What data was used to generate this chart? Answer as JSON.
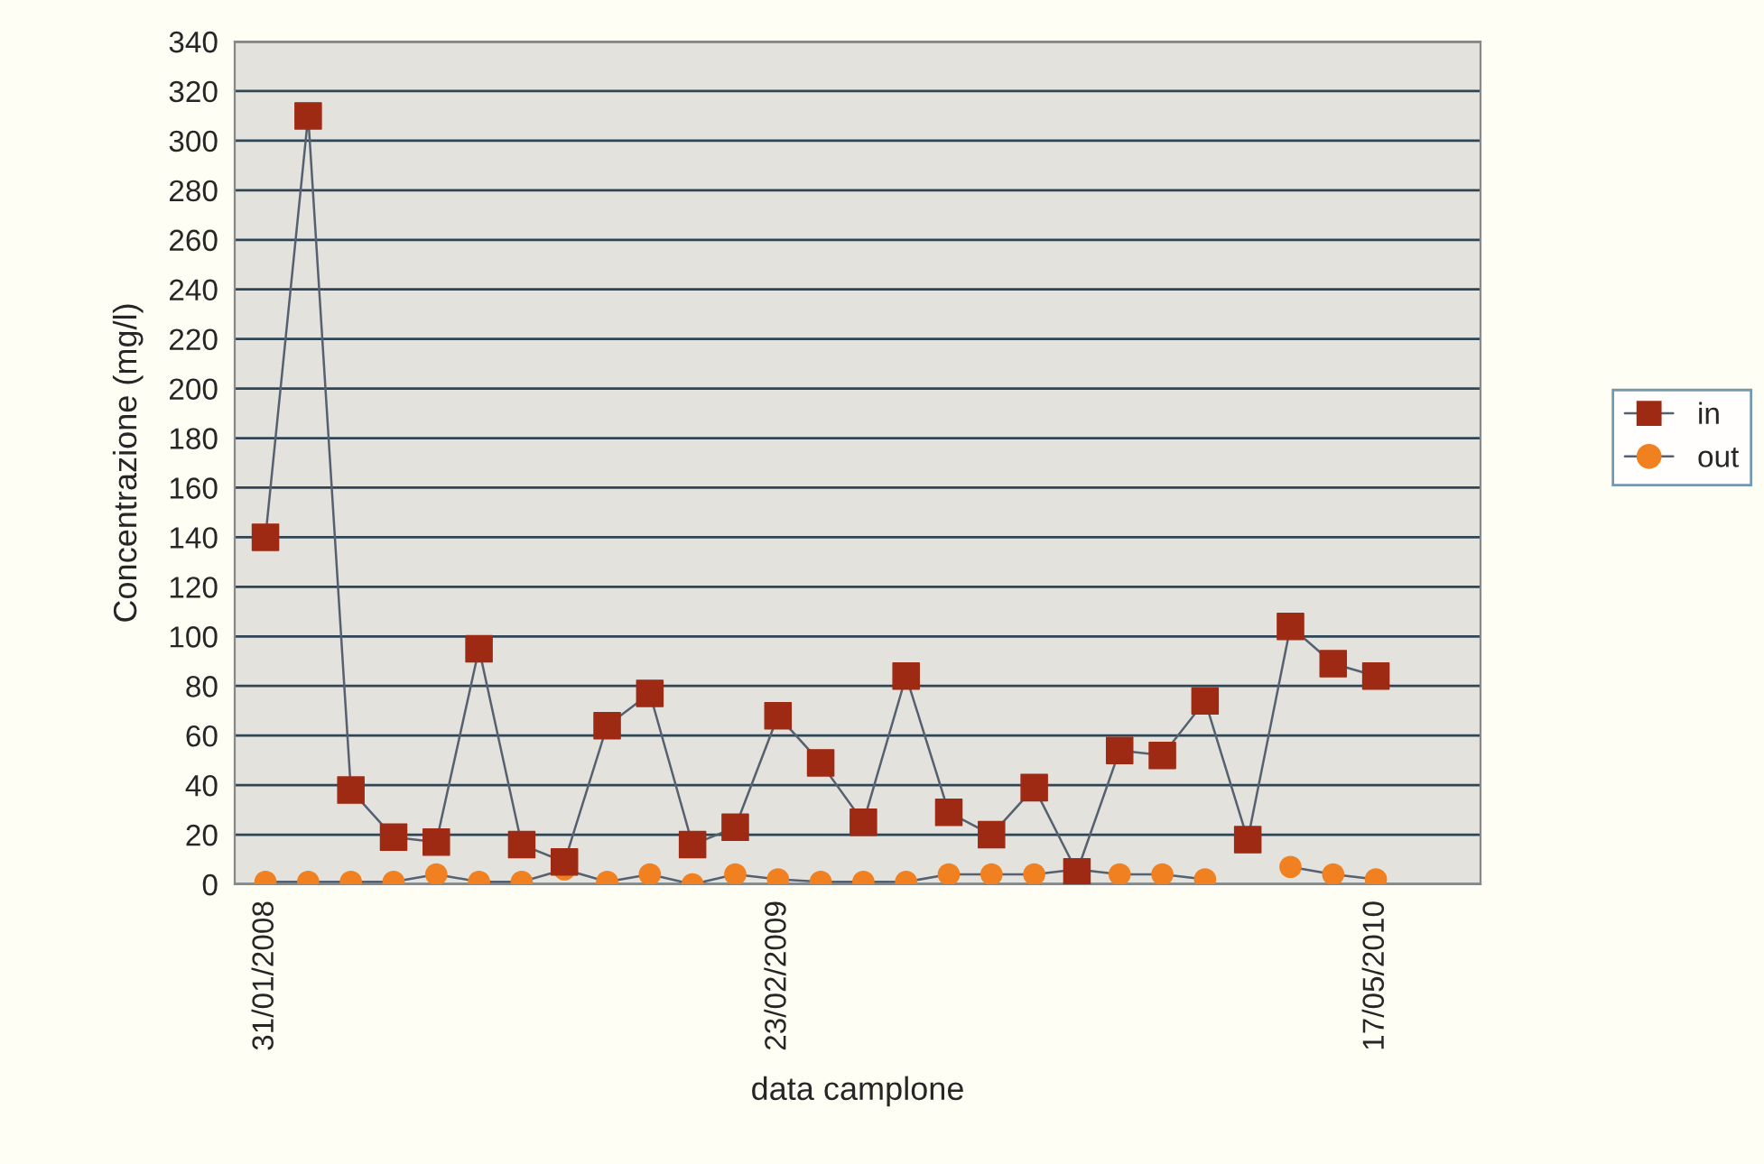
{
  "chart_data": {
    "type": "line",
    "xlabel": "data camplone",
    "ylabel": "Concentrazione (mg/l)",
    "categories": [
      "31/01/2008",
      null,
      null,
      null,
      null,
      null,
      null,
      null,
      null,
      null,
      null,
      null,
      "23/02/2009",
      null,
      null,
      null,
      null,
      null,
      null,
      null,
      null,
      null,
      null,
      null,
      null,
      null,
      "17/05/2010"
    ],
    "series": [
      {
        "name": "in",
        "color": "#9e2a14",
        "marker": "square",
        "values": [
          140,
          310,
          38,
          19,
          17,
          95,
          16,
          9,
          64,
          77,
          16,
          23,
          68,
          49,
          25,
          84,
          29,
          20,
          39,
          5,
          54,
          52,
          74,
          18,
          104,
          89,
          84
        ]
      },
      {
        "name": "out",
        "color": "#f08020",
        "marker": "circle",
        "values": [
          1,
          1,
          1,
          1,
          4,
          1,
          1,
          6,
          1,
          4,
          0,
          4,
          2,
          1,
          1,
          1,
          4,
          4,
          4,
          6,
          4,
          4,
          2,
          null,
          7,
          4,
          2
        ]
      }
    ],
    "ylim": [
      0,
      340
    ],
    "yticks": [
      0,
      20,
      40,
      60,
      80,
      100,
      120,
      140,
      160,
      180,
      200,
      220,
      240,
      260,
      280,
      300,
      320,
      340
    ],
    "grid": "y",
    "legend": "right",
    "line_style": "solid"
  }
}
